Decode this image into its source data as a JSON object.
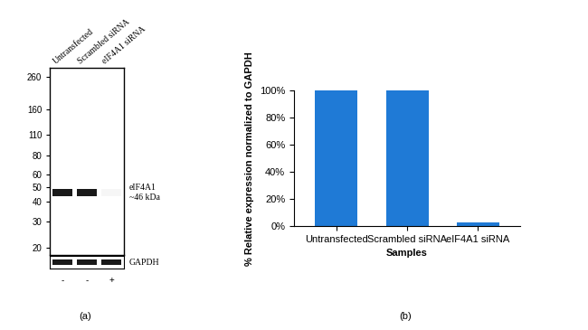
{
  "chart_data": [
    {
      "type": "western_blot",
      "caption": "(a)",
      "categories": [
        "Untransfected",
        "Scrambled siRNA",
        "eIF4A1 siRNA"
      ],
      "treatment": [
        "-",
        "-",
        "+"
      ],
      "band_name": "eIF4A1",
      "band_size_label": "~46 kDa",
      "band_mw": 46,
      "band_intensity": [
        100,
        100,
        4
      ],
      "log": "y",
      "ylim": [
        18,
        300
      ],
      "yticks": [
        20,
        30,
        40,
        50,
        60,
        80,
        110,
        160,
        260
      ],
      "loading_control": {
        "name": "GAPDH",
        "band_intensity": [
          100,
          100,
          100
        ]
      }
    },
    {
      "type": "bar",
      "caption": "(b)",
      "categories": [
        "Untransfected",
        "Scrambled siRNA",
        "eIF4A1 siRNA"
      ],
      "values": [
        100,
        100,
        3
      ],
      "color": "#1f7ad6",
      "x_label": "Samples",
      "y_label": "% Relative expression normalized to GAPDH",
      "ylim": [
        0,
        100
      ],
      "yticks": [
        {
          "value": 0,
          "label": "0%"
        },
        {
          "value": 20,
          "label": "20%"
        },
        {
          "value": 40,
          "label": "40%"
        },
        {
          "value": 60,
          "label": "60%"
        },
        {
          "value": 80,
          "label": "80%"
        },
        {
          "value": 100,
          "label": "100%"
        }
      ],
      "grid": false
    }
  ]
}
